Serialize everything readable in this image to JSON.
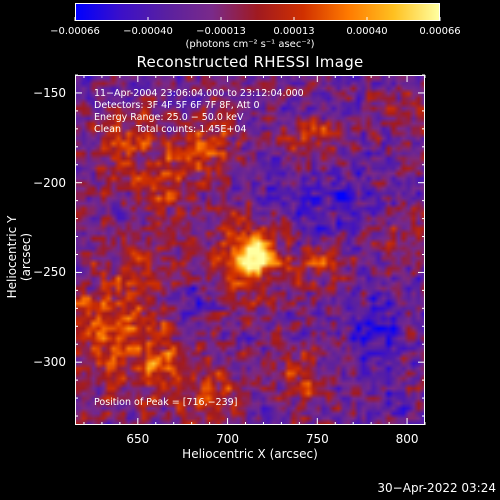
{
  "colorbar": {
    "ticks": [
      "-0.00066",
      "-0.00040",
      "-0.00013",
      "0.00013",
      "0.00040",
      "0.00066"
    ],
    "unit": "(photons cm⁻² s⁻¹ asec⁻²)",
    "stops": [
      "#0000ff",
      "#3c10c8",
      "#5a20a0",
      "#7a2a8a",
      "#a01a20",
      "#d03000",
      "#ff7a00",
      "#ffc020",
      "#ffffa0"
    ]
  },
  "annotations": {
    "line1": "11-Apr-2004 23:06:04.000 to 23:12:04.000",
    "line2": "Detectors: 3F 4F 5F 6F 7F 8F, Att 0",
    "line3": "Energy Range: 25.0 - 50.0 keV",
    "line4": "Clean     Total counts: 1.45E+04",
    "peak": "Position of Peak = [716,-239]"
  },
  "timestamp": "30-Apr-2022 03:24",
  "chart_data": {
    "type": "heatmap",
    "title": "Reconstructed RHESSI Image",
    "xlabel": "Heliocentric X (arcsec)",
    "ylabel": "Heliocentric Y (arcsec)",
    "xlim": [
      615,
      810
    ],
    "ylim": [
      -335,
      -140
    ],
    "xticks": [
      650,
      700,
      750,
      800
    ],
    "yticks": [
      -150,
      -200,
      -250,
      -300
    ],
    "zlim": [
      -0.00066,
      0.00066
    ],
    "peak": {
      "x": 716,
      "y": -239
    },
    "sources": [
      {
        "x": 716,
        "y": -239,
        "sigma": 7,
        "amp": 1.0
      },
      {
        "x": 708,
        "y": -242,
        "sigma": 14,
        "amp": 0.45
      },
      {
        "x": 690,
        "y": -180,
        "sigma": 10,
        "amp": 0.45
      },
      {
        "x": 665,
        "y": -200,
        "sigma": 12,
        "amp": 0.35
      },
      {
        "x": 640,
        "y": -175,
        "sigma": 14,
        "amp": 0.35
      },
      {
        "x": 630,
        "y": -280,
        "sigma": 18,
        "amp": 0.4
      },
      {
        "x": 660,
        "y": -300,
        "sigma": 14,
        "amp": 0.4
      },
      {
        "x": 690,
        "y": -320,
        "sigma": 12,
        "amp": 0.35
      },
      {
        "x": 650,
        "y": -250,
        "sigma": 12,
        "amp": 0.3
      },
      {
        "x": 750,
        "y": -245,
        "sigma": 9,
        "amp": 0.35
      },
      {
        "x": 745,
        "y": -175,
        "sigma": 10,
        "amp": 0.3
      },
      {
        "x": 740,
        "y": -310,
        "sigma": 10,
        "amp": 0.3
      },
      {
        "x": 800,
        "y": -160,
        "sigma": 9,
        "amp": 0.25
      },
      {
        "x": 805,
        "y": -230,
        "sigma": 8,
        "amp": 0.2
      },
      {
        "x": 780,
        "y": -280,
        "sigma": 12,
        "amp": -0.35
      },
      {
        "x": 760,
        "y": -210,
        "sigma": 14,
        "amp": -0.3
      },
      {
        "x": 680,
        "y": -265,
        "sigma": 10,
        "amp": -0.25
      },
      {
        "x": 730,
        "y": -205,
        "sigma": 10,
        "amp": -0.2
      },
      {
        "x": 625,
        "y": -150,
        "sigma": 10,
        "amp": -0.2
      },
      {
        "x": 790,
        "y": -325,
        "sigma": 10,
        "amp": -0.2
      }
    ]
  }
}
